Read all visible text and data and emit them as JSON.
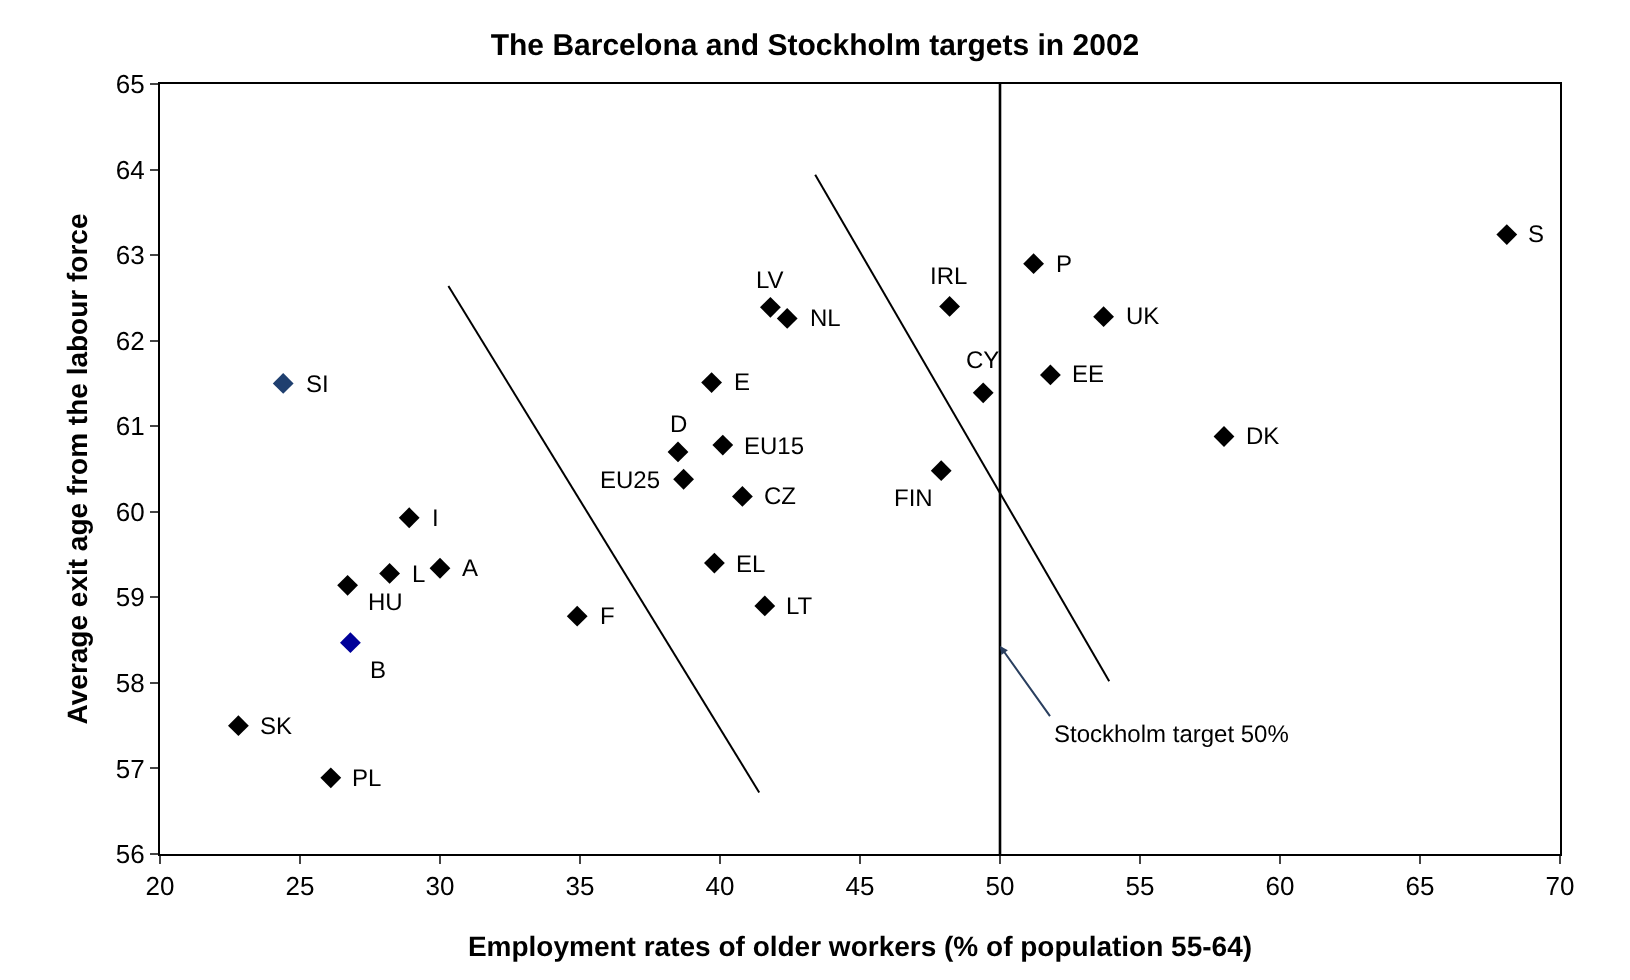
{
  "chart_data": {
    "type": "scatter",
    "title": "The Barcelona and Stockholm targets in 2002",
    "xlabel": "Employment rates of older workers (% of population 55-64)",
    "ylabel": "Average exit age from the labour force",
    "xlim": [
      20,
      70
    ],
    "xticks": [
      20,
      25,
      30,
      35,
      40,
      45,
      50,
      55,
      60,
      65,
      70
    ],
    "ylim": [
      56,
      65
    ],
    "yticks": [
      56,
      57,
      58,
      59,
      60,
      61,
      62,
      63,
      64,
      65
    ],
    "marker": "diamond",
    "series": [
      {
        "color": "#000000",
        "x": [
          24.4,
          28.9,
          28.2,
          30.0,
          26.7,
          26.8,
          22.8,
          26.1,
          34.9,
          38.7,
          40.8,
          39.8,
          41.6,
          38.5,
          39.7,
          40.1,
          41.8,
          42.4,
          48.2,
          49.4,
          47.9,
          51.2,
          53.7,
          51.8,
          58.0,
          68.1
        ],
        "values": [
          61.5,
          59.93,
          59.28,
          59.34,
          59.14,
          58.47,
          57.5,
          56.89,
          58.78,
          60.38,
          60.18,
          59.4,
          58.9,
          60.7,
          61.51,
          60.78,
          62.39,
          62.26,
          62.4,
          61.39,
          60.48,
          62.9,
          62.28,
          61.6,
          60.88,
          63.24
        ],
        "colors": [
          "#1f3f6f",
          "#000000",
          "#000000",
          "#000000",
          "#000000",
          "#000099",
          "#000000",
          "#000000",
          "#000000",
          "#000000",
          "#000000",
          "#000000",
          "#000000",
          "#000000",
          "#000000",
          "#000000",
          "#000000",
          "#000000",
          "#000000",
          "#000000",
          "#000000",
          "#000000",
          "#000000",
          "#000000",
          "#000000",
          "#000000"
        ]
      },
      {
        "type": "line",
        "color": "#000000",
        "marker": "none",
        "x": [
          30.3,
          41.4
        ],
        "values": [
          62.64,
          56.72
        ]
      },
      {
        "type": "line",
        "color": "#000000",
        "marker": "none",
        "x": [
          43.4,
          53.9
        ],
        "values": [
          63.94,
          58.02
        ]
      }
    ],
    "ref_lines": [
      {
        "axis": "x",
        "value": 50,
        "label": "Stockholm target 50%",
        "color": "#000000"
      }
    ],
    "annotations": [
      {
        "text": "SI",
        "x": 24.4,
        "y": 61.5
      },
      {
        "text": "I",
        "x": 28.9,
        "y": 59.93
      },
      {
        "text": "L",
        "x": 28.2,
        "y": 59.28
      },
      {
        "text": "A",
        "x": 30.0,
        "y": 59.34
      },
      {
        "text": "HU",
        "x": 26.7,
        "y": 59.14
      },
      {
        "text": "B",
        "x": 26.8,
        "y": 58.47
      },
      {
        "text": "SK",
        "x": 22.8,
        "y": 57.5
      },
      {
        "text": "PL",
        "x": 26.1,
        "y": 56.89
      },
      {
        "text": "F",
        "x": 34.9,
        "y": 58.78
      },
      {
        "text": "EU25",
        "x": 38.7,
        "y": 60.38
      },
      {
        "text": "CZ",
        "x": 40.8,
        "y": 60.18
      },
      {
        "text": "EL",
        "x": 39.8,
        "y": 59.4
      },
      {
        "text": "LT",
        "x": 41.6,
        "y": 58.9
      },
      {
        "text": "D",
        "x": 38.5,
        "y": 60.7
      },
      {
        "text": "E",
        "x": 39.7,
        "y": 61.51
      },
      {
        "text": "EU15",
        "x": 40.1,
        "y": 60.78
      },
      {
        "text": "LV",
        "x": 41.8,
        "y": 62.39
      },
      {
        "text": "NL",
        "x": 42.4,
        "y": 62.26
      },
      {
        "text": "IRL",
        "x": 48.2,
        "y": 62.4
      },
      {
        "text": "CY",
        "x": 49.4,
        "y": 61.39
      },
      {
        "text": "FIN",
        "x": 47.9,
        "y": 60.48
      },
      {
        "text": "P",
        "x": 51.2,
        "y": 62.9
      },
      {
        "text": "UK",
        "x": 53.7,
        "y": 62.28
      },
      {
        "text": "EE",
        "x": 51.8,
        "y": 61.6
      },
      {
        "text": "DK",
        "x": 58.0,
        "y": 60.88
      },
      {
        "text": "S",
        "x": 68.1,
        "y": 63.24
      }
    ]
  }
}
